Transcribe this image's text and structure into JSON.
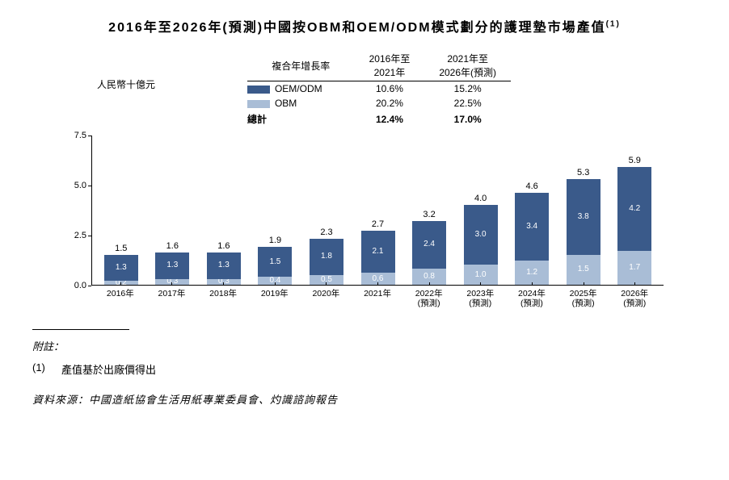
{
  "title": "2016年至2026年(預測)中國按OBM和OEM/ODM模式劃分的護理墊市場產值",
  "title_sup": "(1)",
  "unit_label": "人民幣十億元",
  "cagr": {
    "header_center": "複合年增長率",
    "col1": "2016年至\n2021年",
    "col2": "2021年至\n2026年(預測)",
    "rows": [
      {
        "label": "OEM/ODM",
        "swatch": "#3a5a8a",
        "v1": "10.6%",
        "v2": "15.2%",
        "bold": false
      },
      {
        "label": "OBM",
        "swatch": "#a9bdd6",
        "v1": "20.2%",
        "v2": "22.5%",
        "bold": false
      },
      {
        "label": "總計",
        "swatch": null,
        "v1": "12.4%",
        "v2": "17.0%",
        "bold": true
      }
    ]
  },
  "chart": {
    "type": "stacked-bar",
    "y_max": 7.5,
    "y_ticks": [
      0.0,
      2.5,
      5.0,
      7.5
    ],
    "colors": {
      "obm": "#a9bdd6",
      "oem": "#3a5a8a"
    },
    "background": "#ffffff",
    "label_fontsize": 10,
    "years": [
      {
        "x": "2016年",
        "obm": 0.2,
        "oem": 1.3,
        "total": 1.5
      },
      {
        "x": "2017年",
        "obm": 0.3,
        "oem": 1.3,
        "total": 1.6
      },
      {
        "x": "2018年",
        "obm": 0.3,
        "oem": 1.3,
        "total": 1.6
      },
      {
        "x": "2019年",
        "obm": 0.4,
        "oem": 1.5,
        "total": 1.9
      },
      {
        "x": "2020年",
        "obm": 0.5,
        "oem": 1.8,
        "total": 2.3
      },
      {
        "x": "2021年",
        "obm": 0.6,
        "oem": 2.1,
        "total": 2.7
      },
      {
        "x": "2022年\n(預測)",
        "obm": 0.8,
        "oem": 2.4,
        "total": 3.2
      },
      {
        "x": "2023年\n(預測)",
        "obm": 1.0,
        "oem": 3.0,
        "total": 4.0
      },
      {
        "x": "2024年\n(預測)",
        "obm": 1.2,
        "oem": 3.4,
        "total": 4.6
      },
      {
        "x": "2025年\n(預測)",
        "obm": 1.5,
        "oem": 3.8,
        "total": 5.3
      },
      {
        "x": "2026年\n(預測)",
        "obm": 1.7,
        "oem": 4.2,
        "total": 5.9
      }
    ]
  },
  "footnote_heading": "附註：",
  "footnote_num": "(1)",
  "footnote_text": "產值基於出廠價得出",
  "source": "資料來源：中國造紙協會生活用紙專業委員會、灼識諮詢報告"
}
